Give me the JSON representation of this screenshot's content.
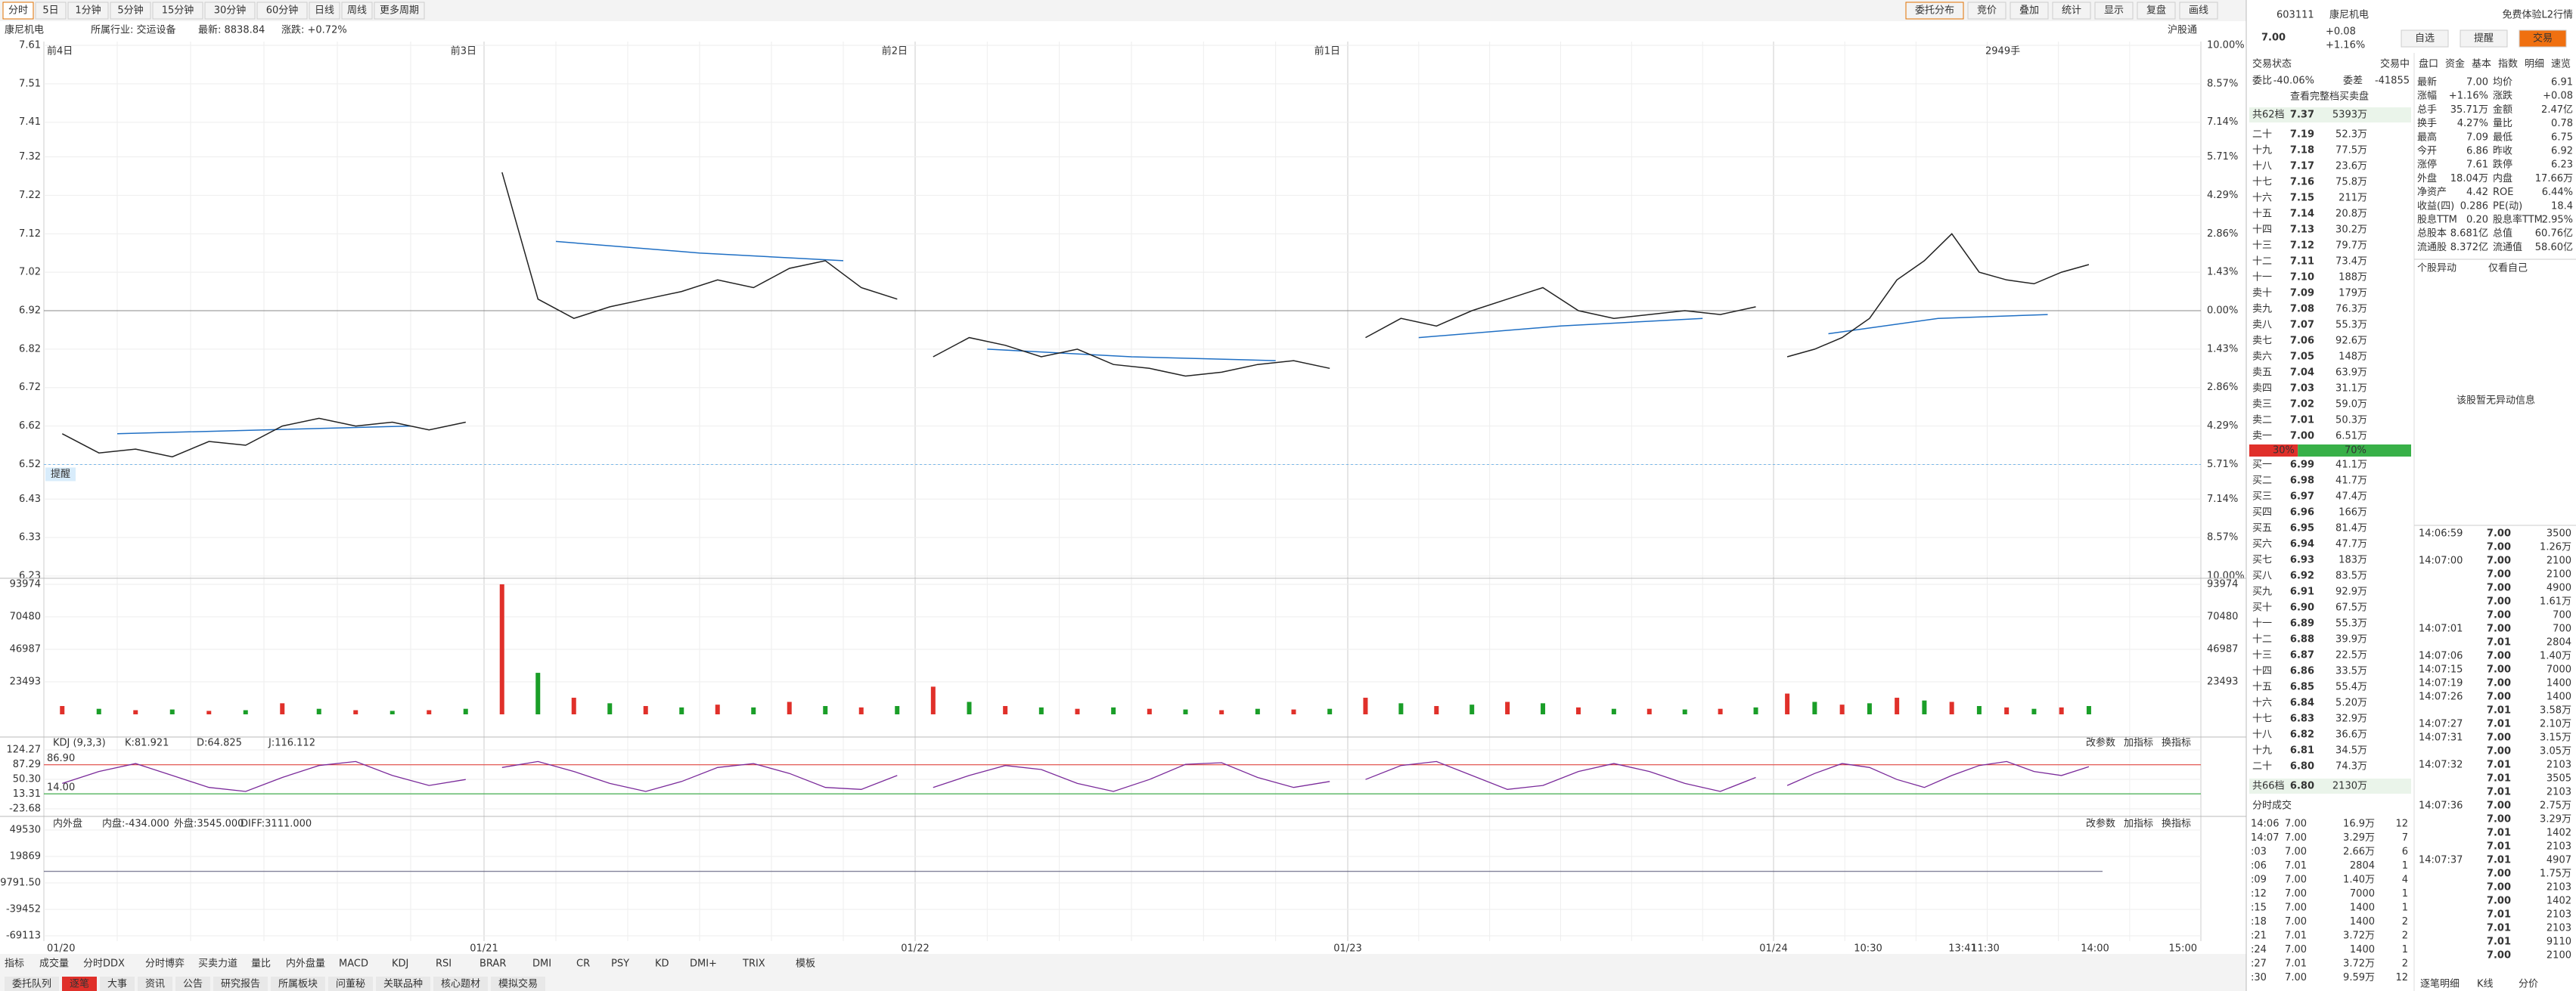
{
  "toolbar": {
    "tabs": [
      "分时",
      "5日",
      "1分钟",
      "5分钟",
      "15分钟",
      "30分钟",
      "60分钟",
      "日线",
      "周线",
      "更多周期"
    ],
    "tools": [
      "委托分布",
      "竞价",
      "叠加",
      "统计",
      "显示",
      "复盘",
      "画线"
    ]
  },
  "info": {
    "name": "康尼机电",
    "industry": "所属行业: 交运设备",
    "latest": "最新: 8838.84",
    "change": "涨跌: +0.72%"
  },
  "chart": {
    "day_labels": [
      "前4日",
      "前3日",
      "前2日",
      "前1日"
    ],
    "volume_note": "2949手",
    "connect": "沪股通",
    "alert_label": "提醒",
    "yticks": [
      7.61,
      7.51,
      7.41,
      7.32,
      7.22,
      7.12,
      7.02,
      6.92,
      6.82,
      6.72,
      6.62,
      6.52,
      6.43,
      6.33,
      6.23
    ],
    "pct_labels": [
      "10.00%",
      "8.57%",
      "7.14%",
      "5.71%",
      "4.29%",
      "2.86%",
      "1.43%",
      "0.00%",
      "1.43%",
      "2.86%",
      "4.29%",
      "5.71%",
      "7.14%",
      "8.57%",
      "10.00%"
    ],
    "prev_close": 6.92,
    "alert_price": 6.52,
    "price": [
      [
        6.6,
        6.55,
        6.56,
        6.54,
        6.58,
        6.57,
        6.62,
        6.64,
        6.62,
        6.63,
        6.61,
        6.63
      ],
      [
        7.28,
        6.95,
        6.9,
        6.93,
        6.95,
        6.97,
        7.0,
        6.98,
        7.03,
        7.05,
        6.98,
        6.95
      ],
      [
        6.8,
        6.85,
        6.83,
        6.8,
        6.82,
        6.78,
        6.77,
        6.75,
        6.76,
        6.78,
        6.79,
        6.77
      ],
      [
        6.85,
        6.9,
        6.88,
        6.92,
        6.95,
        6.98,
        6.92,
        6.9,
        6.91,
        6.92,
        6.91,
        6.93
      ],
      [
        6.8,
        6.82,
        6.85,
        6.9,
        7.0,
        7.05,
        7.12,
        7.02,
        7.0,
        6.99,
        7.02,
        7.04
      ]
    ],
    "avg": [
      [
        6.6,
        6.61,
        6.62
      ],
      [
        7.1,
        7.07,
        7.05
      ],
      [
        6.82,
        6.8,
        6.79
      ],
      [
        6.85,
        6.88,
        6.9
      ],
      [
        6.86,
        6.9,
        6.91
      ]
    ],
    "volume_ticks": [
      93974,
      70480,
      46987,
      23493
    ],
    "volume": [
      [
        6000,
        4000,
        3000,
        3500,
        2500,
        3000,
        8000,
        4000,
        3000,
        2500,
        3000,
        4000
      ],
      [
        93974,
        30000,
        12000,
        8000,
        6000,
        5000,
        7000,
        5000,
        9000,
        6000,
        5000,
        6000
      ],
      [
        20000,
        9000,
        6000,
        5000,
        4000,
        5000,
        4000,
        3500,
        3000,
        4000,
        3500,
        4000
      ],
      [
        12000,
        8000,
        6000,
        7000,
        9000,
        8000,
        5000,
        4000,
        4000,
        3500,
        4000,
        5000
      ],
      [
        15000,
        9000,
        7000,
        8000,
        12000,
        10000,
        9000,
        6000,
        5000,
        4000,
        5000,
        6000
      ]
    ],
    "kdj": {
      "title": "KDJ (9,3,3)",
      "k": "K:81.921",
      "d": "D:64.825",
      "j": "J:116.112",
      "yticks": [
        124.27,
        87.29,
        {
          "value": 50.3,
          "label": "50.30"
        },
        13.31,
        -23.68
      ],
      "upper": {
        "value": 86.9,
        "label": "86.90"
      },
      "lower": {
        "value": 14,
        "label": "14.00"
      },
      "values": [
        [
          40,
          70,
          90,
          60,
          30,
          20,
          55,
          85,
          95,
          60,
          35,
          50
        ],
        [
          80,
          95,
          70,
          40,
          20,
          45,
          80,
          90,
          65,
          30,
          25,
          60
        ],
        [
          30,
          60,
          85,
          75,
          40,
          20,
          50,
          88,
          92,
          55,
          30,
          45
        ],
        [
          50,
          85,
          95,
          60,
          25,
          35,
          70,
          90,
          70,
          40,
          20,
          55
        ],
        [
          35,
          65,
          90,
          80,
          50,
          30,
          60,
          85,
          95,
          70,
          60,
          82
        ]
      ]
    },
    "tools": [
      "改参数",
      "加指标",
      "换指标"
    ],
    "flow": {
      "title": "内外盘",
      "inner": "内盘:-434.000",
      "outer": "外盘:3545.000",
      "diff": "DIFF:3111.000",
      "yticks": [
        49530,
        19869,
        {
          "value": -9791.5,
          "label": "-9791.50"
        },
        -39452,
        -69113
      ]
    },
    "x_labels": [
      "01/20",
      "01/21",
      "01/22",
      "01/23",
      "01/24",
      "10:30",
      "13:41",
      "11:30",
      "14:00",
      "15:00"
    ],
    "indicator_tabs": [
      "指标",
      "成交量",
      "分时DDX",
      "分时博弈",
      "买卖力道",
      "量比",
      "内外盘量",
      "MACD",
      "KDJ",
      "RSI",
      "BRAR",
      "DMI",
      "CR",
      "PSY",
      "KD",
      "DMI+",
      "TRIX",
      "模板"
    ],
    "bottom_tabs": [
      "委托队列",
      "逐笔",
      "大事",
      "资讯",
      "公告",
      "研究报告",
      "所属板块",
      "问董秘",
      "关联品种",
      "核心题材",
      "模拟交易"
    ]
  },
  "quote": {
    "code": "603111",
    "name": "康尼机电",
    "price": "7.00",
    "change": "+0.08",
    "pct": "+1.16%",
    "promo": "免费体验L2行情",
    "buttons": [
      "自选",
      "提醒",
      "交易"
    ],
    "tabs": [
      "盘口",
      "资金",
      "基本",
      "指数",
      "明细",
      "速览"
    ],
    "status_label": "交易状态",
    "status": "交易中",
    "ratio_label": "委比",
    "ratio": "-40.06%",
    "diff_label": "委差",
    "diff": "-41855",
    "full_book": "查看完整档买卖盘",
    "sell_total": [
      "共62档",
      "7.37",
      "5393万"
    ],
    "sells": [
      [
        "二十",
        "7.19",
        "52.3万"
      ],
      [
        "十九",
        "7.18",
        "77.5万"
      ],
      [
        "十八",
        "7.17",
        "23.6万"
      ],
      [
        "十七",
        "7.16",
        "75.8万"
      ],
      [
        "十六",
        "7.15",
        "211万"
      ],
      [
        "十五",
        "7.14",
        "20.8万"
      ],
      [
        "十四",
        "7.13",
        "30.2万"
      ],
      [
        "十三",
        "7.12",
        "79.7万"
      ],
      [
        "十二",
        "7.11",
        "73.4万"
      ],
      [
        "十一",
        "7.10",
        "188万"
      ],
      [
        "卖十",
        "7.09",
        "179万"
      ],
      [
        "卖九",
        "7.08",
        "76.3万"
      ],
      [
        "卖八",
        "7.07",
        "55.3万"
      ],
      [
        "卖七",
        "7.06",
        "92.6万"
      ],
      [
        "卖六",
        "7.05",
        "148万"
      ],
      [
        "卖五",
        "7.04",
        "63.9万"
      ],
      [
        "卖四",
        "7.03",
        "31.1万"
      ],
      [
        "卖三",
        "7.02",
        "59.0万"
      ],
      [
        "卖二",
        "7.01",
        "50.3万"
      ],
      [
        "卖一",
        "7.00",
        "6.51万"
      ]
    ],
    "split": [
      {
        "value": 30,
        "label": "30%"
      },
      {
        "value": 70,
        "label": "70%"
      }
    ],
    "buys": [
      [
        "买一",
        "6.99",
        "41.1万"
      ],
      [
        "买二",
        "6.98",
        "41.7万"
      ],
      [
        "买三",
        "6.97",
        "47.4万"
      ],
      [
        "买四",
        "6.96",
        "166万"
      ],
      [
        "买五",
        "6.95",
        "81.4万"
      ],
      [
        "买六",
        "6.94",
        "47.7万"
      ],
      [
        "买七",
        "6.93",
        "183万"
      ],
      [
        "买八",
        "6.92",
        "83.5万"
      ],
      [
        "买九",
        "6.91",
        "92.9万"
      ],
      [
        "买十",
        "6.90",
        "67.5万"
      ],
      [
        "十一",
        "6.89",
        "55.3万"
      ],
      [
        "十二",
        "6.88",
        "39.9万"
      ],
      [
        "十三",
        "6.87",
        "22.5万"
      ],
      [
        "十四",
        "6.86",
        "33.5万"
      ],
      [
        "十五",
        "6.85",
        "55.4万"
      ],
      [
        "十六",
        "6.84",
        "5.20万"
      ],
      [
        "十七",
        "6.83",
        "32.9万"
      ],
      [
        "十八",
        "6.82",
        "36.6万"
      ],
      [
        "十九",
        "6.81",
        "34.5万"
      ],
      [
        "二十",
        "6.80",
        "74.3万"
      ]
    ],
    "buy_total": [
      "共66档",
      "6.80",
      "2130万"
    ],
    "ticks_title": "分时成交",
    "ticks": [
      [
        "14:06",
        "7.00",
        "16.9万",
        "12"
      ],
      [
        "14:07",
        "7.00",
        "3.29万",
        "7"
      ],
      [
        ":03",
        "7.00",
        "2.66万",
        "6"
      ],
      [
        ":06",
        "7.01",
        "2804",
        "1"
      ],
      [
        ":09",
        "7.00",
        "1.40万",
        "4"
      ],
      [
        ":12",
        "7.00",
        "7000",
        "1"
      ],
      [
        ":15",
        "7.00",
        "1400",
        "1"
      ],
      [
        ":18",
        "7.00",
        "1400",
        "2"
      ],
      [
        ":21",
        "7.01",
        "3.72万",
        "2"
      ],
      [
        ":24",
        "7.00",
        "1400",
        "1"
      ],
      [
        ":27",
        "7.01",
        "3.72万",
        "2"
      ],
      [
        ":30",
        "7.00",
        "9.59万",
        "12"
      ]
    ],
    "stats": [
      [
        "最新",
        "7.00",
        "均价",
        "6.91"
      ],
      [
        "涨幅",
        "+1.16%",
        "涨跌",
        "+0.08"
      ],
      [
        "总手",
        "35.71万",
        "金额",
        "2.47亿"
      ],
      [
        "换手",
        "4.27%",
        "量比",
        "0.78"
      ],
      [
        "最高",
        "7.09",
        "最低",
        "6.75"
      ],
      [
        "今开",
        "6.86",
        "昨收",
        "6.92"
      ],
      [
        "涨停",
        "7.61",
        "跌停",
        "6.23"
      ],
      [
        "外盘",
        "18.04万",
        "内盘",
        "17.66万"
      ],
      [
        "净资产",
        "4.42",
        "ROE",
        "6.44%"
      ],
      [
        "收益(四)",
        "0.286",
        "PE(动)",
        "18.4"
      ],
      [
        "股息TTM",
        "0.20",
        "股息率TTM",
        "2.95%"
      ],
      [
        "总股本",
        "8.681亿",
        "总值",
        "60.76亿"
      ],
      [
        "流通股",
        "8.372亿",
        "流通值",
        "58.60亿"
      ]
    ],
    "alert_title": "个股异动",
    "alert_filter": "仅看自己",
    "alert_empty": "该股暂无异动信息",
    "trades": [
      [
        "14:06:59",
        "7.00",
        "3500"
      ],
      [
        null,
        "7.00",
        "1.26万"
      ],
      [
        "14:07:00",
        "7.00",
        "2100"
      ],
      [
        null,
        "7.00",
        "2100"
      ],
      [
        null,
        "7.00",
        "4900"
      ],
      [
        null,
        "7.00",
        "1.61万"
      ],
      [
        null,
        "7.00",
        "700"
      ],
      [
        "14:07:01",
        "7.00",
        "700"
      ],
      [
        null,
        "7.01",
        "2804"
      ],
      [
        "14:07:06",
        "7.00",
        "1.40万"
      ],
      [
        "14:07:15",
        "7.00",
        "7000"
      ],
      [
        "14:07:19",
        "7.00",
        "1400"
      ],
      [
        "14:07:26",
        "7.00",
        "1400"
      ],
      [
        null,
        "7.01",
        "3.58万"
      ],
      [
        "14:07:27",
        "7.01",
        "2.10万"
      ],
      [
        "14:07:31",
        "7.00",
        "3.15万"
      ],
      [
        null,
        "7.00",
        "3.05万"
      ],
      [
        "14:07:32",
        "7.01",
        "2103"
      ],
      [
        null,
        "7.01",
        "3505"
      ],
      [
        null,
        "7.01",
        "2103"
      ],
      [
        "14:07:36",
        "7.00",
        "2.75万"
      ],
      [
        null,
        "7.00",
        "3.29万"
      ],
      [
        null,
        "7.01",
        "1402"
      ],
      [
        null,
        "7.01",
        "2103"
      ],
      [
        "14:07:37",
        "7.01",
        "4907"
      ],
      [
        null,
        "7.00",
        "1.75万"
      ],
      [
        null,
        "7.00",
        "2103"
      ],
      [
        null,
        "7.00",
        "1402"
      ],
      [
        null,
        "7.01",
        "2103"
      ],
      [
        null,
        "7.01",
        "2103"
      ],
      [
        null,
        "7.01",
        "9110"
      ],
      [
        null,
        "7.00",
        "2100"
      ]
    ],
    "bottom_tabs": [
      "逐笔明细",
      "K线",
      "分价"
    ]
  }
}
